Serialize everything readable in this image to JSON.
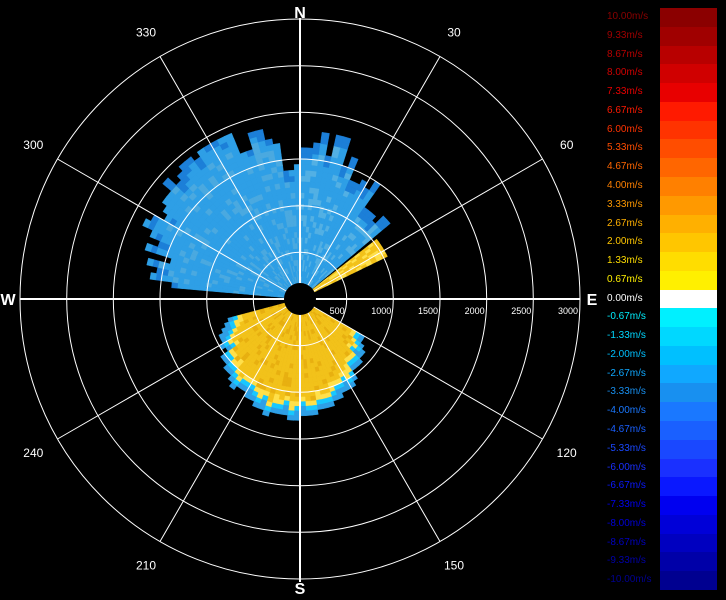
{
  "chart_data": {
    "type": "polar-radar",
    "title": "",
    "cardinals": [
      {
        "angle": 0,
        "label": "N"
      },
      {
        "angle": 90,
        "label": "E"
      },
      {
        "angle": 180,
        "label": "S"
      },
      {
        "angle": 270,
        "label": "W"
      }
    ],
    "angle_labels": [
      {
        "angle": 30,
        "label": "30"
      },
      {
        "angle": 60,
        "label": "60"
      },
      {
        "angle": 120,
        "label": "120"
      },
      {
        "angle": 150,
        "label": "150"
      },
      {
        "angle": 210,
        "label": "210"
      },
      {
        "angle": 240,
        "label": "240"
      },
      {
        "angle": 300,
        "label": "300"
      },
      {
        "angle": 330,
        "label": "330"
      }
    ],
    "range_labels": [
      {
        "value": 500,
        "label": "500"
      },
      {
        "value": 1000,
        "label": "1000"
      },
      {
        "value": 1500,
        "label": "1500"
      },
      {
        "value": 2000,
        "label": "2000"
      },
      {
        "value": 2500,
        "label": "2500"
      },
      {
        "value": 3000,
        "label": "3000"
      }
    ],
    "range_max": 3000,
    "grid": true,
    "legend_position": "right",
    "legend": [
      {
        "label": "10.00m/s",
        "value": 10.0,
        "color": "#8b0000"
      },
      {
        "label": "9.33m/s",
        "value": 9.33,
        "color": "#a00000"
      },
      {
        "label": "8.67m/s",
        "value": 8.67,
        "color": "#b80000"
      },
      {
        "label": "8.00m/s",
        "value": 8.0,
        "color": "#d00000"
      },
      {
        "label": "7.33m/s",
        "value": 7.33,
        "color": "#e80000"
      },
      {
        "label": "6.67m/s",
        "value": 6.67,
        "color": "#ff1a00"
      },
      {
        "label": "6.00m/s",
        "value": 6.0,
        "color": "#ff3300"
      },
      {
        "label": "5.33m/s",
        "value": 5.33,
        "color": "#ff4d00"
      },
      {
        "label": "4.67m/s",
        "value": 4.67,
        "color": "#ff6600"
      },
      {
        "label": "4.00m/s",
        "value": 4.0,
        "color": "#ff8000"
      },
      {
        "label": "3.33m/s",
        "value": 3.33,
        "color": "#ff9900"
      },
      {
        "label": "2.67m/s",
        "value": 2.67,
        "color": "#ffb000"
      },
      {
        "label": "2.00m/s",
        "value": 2.0,
        "color": "#ffc600"
      },
      {
        "label": "1.33m/s",
        "value": 1.33,
        "color": "#ffdd00"
      },
      {
        "label": "0.67m/s",
        "value": 0.67,
        "color": "#fff000"
      },
      {
        "label": "0.00m/s",
        "value": 0.0,
        "color": "#ffffff"
      },
      {
        "label": "-0.67m/s",
        "value": -0.67,
        "color": "#00f0ff"
      },
      {
        "label": "-1.33m/s",
        "value": -1.33,
        "color": "#00d8ff"
      },
      {
        "label": "-2.00m/s",
        "value": -2.0,
        "color": "#00c0ff"
      },
      {
        "label": "-2.67m/s",
        "value": -2.67,
        "color": "#10a8ff"
      },
      {
        "label": "-3.33m/s",
        "value": -3.33,
        "color": "#1890f0"
      },
      {
        "label": "-4.00m/s",
        "value": -4.0,
        "color": "#1a78ff"
      },
      {
        "label": "-4.67m/s",
        "value": -4.67,
        "color": "#1a60ff"
      },
      {
        "label": "-5.33m/s",
        "value": -5.33,
        "color": "#1a48ff"
      },
      {
        "label": "-6.00m/s",
        "value": -6.0,
        "color": "#1a30ff"
      },
      {
        "label": "-6.67m/s",
        "value": -6.67,
        "color": "#0a18ff"
      },
      {
        "label": "-7.33m/s",
        "value": -7.33,
        "color": "#0000f0"
      },
      {
        "label": "-8.00m/s",
        "value": -8.0,
        "color": "#0000d8"
      },
      {
        "label": "-8.67m/s",
        "value": -8.67,
        "color": "#0000c0"
      },
      {
        "label": "-9.33m/s",
        "value": -9.33,
        "color": "#0000a8"
      },
      {
        "label": "-10.00m/s",
        "value": -10.0,
        "color": "#000090"
      }
    ],
    "colors": {
      "background": "#000000",
      "grid": "#ffffff",
      "approaching": "#2e9fe6",
      "approaching_dark": "#1c7fd8",
      "receding": "#f2c21a",
      "receding_light": "#ffe04a",
      "edge_cyan": "#18c8ff"
    },
    "sectors": [
      {
        "name": "north-west-approaching",
        "az_start": 275,
        "az_end": 360,
        "r_min": 60,
        "r_max": 1900,
        "velocity": -3.0
      },
      {
        "name": "north-east-approaching",
        "az_start": 0,
        "az_end": 50,
        "r_min": 60,
        "r_max": 1750,
        "velocity": -3.3
      },
      {
        "name": "north-east-receding-band",
        "az_start": 52,
        "az_end": 64,
        "r_min": 80,
        "r_max": 1000,
        "velocity": 1.6
      },
      {
        "name": "south-receding",
        "az_start": 120,
        "az_end": 255,
        "r_min": 100,
        "r_max": 1200,
        "velocity": 2.5
      }
    ]
  }
}
